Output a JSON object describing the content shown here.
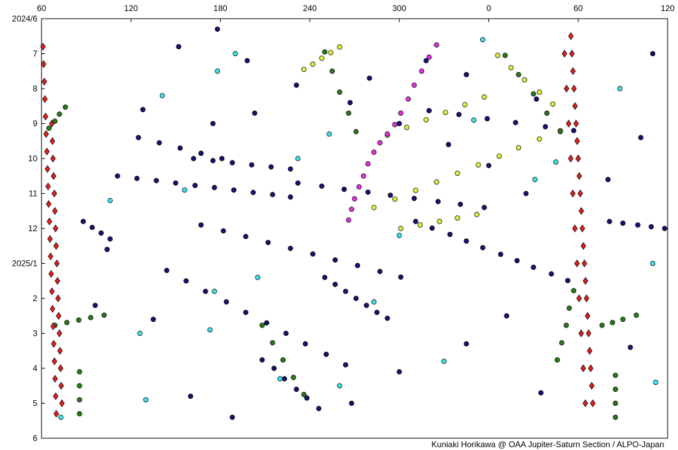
{
  "chart_data": {
    "type": "scatter",
    "credit": "Kuniaki Horikawa @ OAA Jupiter-Saturn Section / ALPO-Japan",
    "xlim": [
      60,
      480
    ],
    "xticks": [
      60,
      120,
      180,
      240,
      300,
      {
        "value": 360,
        "label": "0"
      },
      {
        "value": 420,
        "label": "60"
      },
      {
        "value": 480,
        "label": "120"
      }
    ],
    "ylim": [
      0,
      12
    ],
    "y_inverted": true,
    "yticks": [
      {
        "value": 0,
        "label": "2024/6"
      },
      {
        "value": 1,
        "label": "7"
      },
      {
        "value": 2,
        "label": "8"
      },
      {
        "value": 3,
        "label": "9"
      },
      {
        "value": 4,
        "label": "10"
      },
      {
        "value": 5,
        "label": "11"
      },
      {
        "value": 6,
        "label": "12"
      },
      {
        "value": 7,
        "label": "2025/1"
      },
      {
        "value": 8,
        "label": "2"
      },
      {
        "value": 9,
        "label": "3"
      },
      {
        "value": 10,
        "label": "4"
      },
      {
        "value": 11,
        "label": "5"
      },
      {
        "value": 12,
        "label": "6"
      }
    ],
    "series": [
      {
        "color": "#14146e",
        "marker": "circle",
        "x": [
          144,
          157,
          170,
          184,
          197,
          211,
          224,
          237,
          251,
          264,
          167,
          182,
          197,
          212,
          227,
          242,
          257,
          272,
          287,
          301,
          311,
          322,
          334,
          345,
          356,
          368,
          379,
          390,
          402,
          413,
          111,
          124,
          137,
          150,
          163,
          176,
          189,
          202,
          215,
          227,
          162,
          175,
          188,
          201,
          214,
          227,
          125,
          139,
          153,
          167,
          181,
          232,
          248,
          263,
          279,
          294,
          310,
          326,
          341,
          357,
          320,
          340,
          359,
          378,
          398,
          417,
          208,
          216,
          223,
          231,
          238,
          246,
          441,
          450,
          460,
          469,
          478,
          88,
          94,
          100,
          106,
          250,
          257,
          264,
          271,
          278,
          285,
          292,
          152,
          198,
          231,
          280,
          318,
          345,
          392,
          128,
          175,
          203,
          267,
          300,
          333,
          360,
          385,
          440,
          462,
          104,
          96,
          135,
          160,
          188,
          268,
          300,
          345,
          372,
          395,
          455,
          178,
          470
        ],
        "values": [
          7.2,
          7.5,
          7.8,
          8.1,
          8.4,
          8.7,
          9.0,
          9.3,
          9.6,
          9.9,
          5.9,
          6.07,
          6.23,
          6.4,
          6.57,
          6.73,
          6.9,
          7.06,
          7.23,
          7.39,
          5.8,
          5.99,
          6.17,
          6.36,
          6.55,
          6.74,
          6.92,
          7.11,
          7.3,
          7.49,
          4.5,
          4.57,
          4.63,
          4.7,
          4.77,
          4.83,
          4.9,
          4.97,
          5.03,
          5.1,
          4.0,
          4.06,
          4.12,
          4.18,
          4.24,
          4.3,
          3.4,
          3.55,
          3.7,
          3.85,
          4.0,
          4.7,
          4.79,
          4.88,
          4.96,
          5.05,
          5.14,
          5.23,
          5.31,
          5.4,
          2.63,
          2.74,
          2.86,
          2.97,
          3.09,
          3.2,
          9.76,
          10.0,
          10.3,
          10.6,
          10.85,
          11.15,
          5.8,
          5.85,
          5.9,
          5.95,
          6.0,
          5.8,
          5.97,
          6.13,
          6.3,
          7.4,
          7.6,
          7.8,
          8.0,
          8.2,
          8.4,
          8.57,
          0.8,
          1.2,
          1.9,
          1.7,
          1.2,
          1.6,
          2.3,
          2.6,
          3.0,
          2.7,
          2.4,
          3.0,
          3.6,
          4.2,
          5.0,
          4.6,
          3.4,
          6.6,
          8.2,
          8.6,
          10.8,
          11.4,
          11.0,
          10.1,
          9.3,
          8.5,
          10.7,
          9.4,
          0.3,
          1.0
        ]
      },
      {
        "color": "#3ee0e8",
        "marker": "circle",
        "x": [
          178,
          173,
          232,
          141,
          220,
          283,
          300,
          126,
          156,
          190,
          350,
          391,
          356,
          405,
          448,
          470,
          472,
          106,
          130,
          205,
          260,
          330,
          73,
          176,
          253
        ],
        "values": [
          1.5,
          8.9,
          4.0,
          2.2,
          10.3,
          8.1,
          6.2,
          9.0,
          4.9,
          1.0,
          2.9,
          4.6,
          0.6,
          4.1,
          2.0,
          7.0,
          10.4,
          5.2,
          10.9,
          7.4,
          10.5,
          9.8,
          11.4,
          7.8,
          3.3
        ]
      },
      {
        "color": "#d8f040",
        "marker": "circle",
        "x": [
          236,
          242,
          248,
          254,
          260,
          283,
          297,
          311,
          325,
          339,
          353,
          367,
          380,
          394,
          408,
          292,
          305,
          318,
          331,
          344,
          357,
          301,
          314,
          327,
          339,
          352,
          366,
          375,
          384,
          394,
          403
        ],
        "values": [
          1.45,
          1.3,
          1.13,
          0.97,
          0.81,
          5.4,
          5.16,
          4.91,
          4.67,
          4.42,
          4.18,
          3.93,
          3.69,
          3.44,
          3.2,
          3.33,
          3.11,
          2.89,
          2.68,
          2.46,
          2.24,
          6.0,
          5.9,
          5.8,
          5.7,
          5.6,
          1.05,
          1.4,
          1.75,
          2.1,
          2.44
        ]
      },
      {
        "color": "#2a7a1a",
        "marker": "circle",
        "x": [
          250,
          255,
          260,
          266,
          271,
          371,
          380,
          390,
          399,
          408,
          208,
          215,
          222,
          229,
          236,
          406,
          409,
          412,
          414,
          417,
          65,
          69,
          72,
          76,
          85.5,
          85.5,
          85.5,
          85.5,
          445,
          445,
          445,
          445,
          69,
          77,
          85,
          93,
          102,
          436,
          443,
          450,
          459
        ],
        "values": [
          0.95,
          1.5,
          2.1,
          2.7,
          3.23,
          1.05,
          1.6,
          2.15,
          2.7,
          3.23,
          8.77,
          9.27,
          9.76,
          10.26,
          10.75,
          9.76,
          9.27,
          8.77,
          8.28,
          7.78,
          3.13,
          2.93,
          2.73,
          2.53,
          10.1,
          10.5,
          10.9,
          11.3,
          10.2,
          10.6,
          11.0,
          11.4,
          8.77,
          8.69,
          8.62,
          8.55,
          8.48,
          8.77,
          8.69,
          8.6,
          8.48
        ]
      },
      {
        "color": "#e030e0",
        "marker": "circle",
        "x": [
          325,
          320,
          315,
          310,
          306,
          301,
          297,
          292,
          287,
          283,
          279,
          276,
          273,
          270,
          268,
          266
        ],
        "values": [
          0.75,
          1.1,
          1.5,
          1.9,
          2.3,
          2.7,
          3.03,
          3.3,
          3.55,
          3.82,
          4.15,
          4.5,
          4.81,
          5.15,
          5.45,
          5.76
        ]
      },
      {
        "color": "#e02020",
        "marker": "diamond",
        "x": [
          61,
          61.4,
          61.9,
          62.3,
          62.7,
          63.1,
          63.6,
          64.0,
          64.4,
          64.8,
          65.3,
          65.7,
          66.1,
          66.5,
          67.0,
          67.4,
          67.8,
          68.2,
          68.7,
          69.1,
          69.5,
          69.9,
          66.9,
          67.3,
          67.7,
          68.1,
          68.6,
          69.0,
          69.4,
          69.8,
          70.3,
          70.7,
          71.1,
          71.5,
          72.0,
          72.4,
          72.8,
          73.2,
          73.7,
          415.1,
          415.8,
          416.5,
          417.2,
          417.9,
          418.6,
          419.3,
          420.0,
          420.7,
          421.4,
          422.1,
          422.8,
          423.5,
          424.2,
          424.9,
          425.6,
          426.3,
          427.0,
          427.7,
          428.4,
          429.1,
          429.8,
          410.8,
          412.2,
          413.6,
          415.0,
          416.4,
          417.8,
          419.2,
          420.6,
          422.0,
          423.4,
          424.8
        ],
        "values": [
          0.8,
          1.3,
          1.8,
          2.3,
          2.8,
          3.3,
          3.8,
          4.3,
          4.8,
          5.3,
          5.8,
          6.3,
          6.8,
          7.3,
          7.8,
          8.3,
          8.8,
          9.3,
          9.8,
          10.3,
          10.8,
          11.3,
          3.0,
          3.5,
          4.0,
          4.5,
          5.0,
          5.5,
          6.0,
          6.5,
          7.0,
          7.5,
          8.0,
          8.5,
          9.0,
          9.5,
          10.0,
          10.5,
          11.0,
          0.5,
          1.0,
          1.5,
          2.0,
          2.5,
          3.0,
          3.5,
          4.0,
          4.5,
          5.0,
          5.5,
          6.0,
          6.5,
          7.0,
          7.5,
          8.0,
          8.5,
          9.0,
          9.5,
          10.0,
          10.5,
          11.0,
          1,
          2,
          3,
          4,
          5,
          6,
          7,
          8,
          9,
          10,
          11
        ]
      }
    ]
  }
}
